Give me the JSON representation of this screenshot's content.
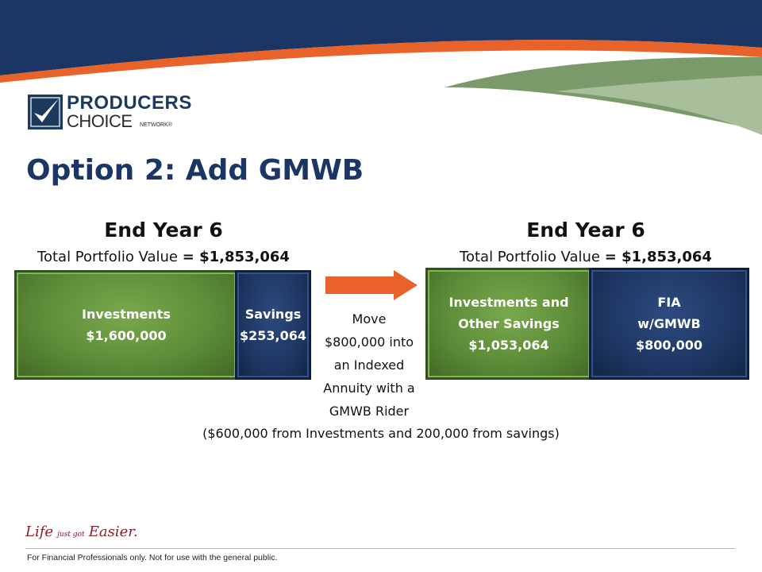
{
  "brand": {
    "name_line1": "PRODUCERS",
    "name_line2": "CHOICE",
    "name_line3": "NETWORK®",
    "logo_icon": "checkmark-icon",
    "colors": {
      "navy": "#1b3664",
      "green": "#5d8d39",
      "orange": "#e8622a",
      "tagline_red": "#8b1f2a"
    }
  },
  "slide": {
    "title": "Option 2: Add GMWB"
  },
  "left_group": {
    "heading": "End Year 6",
    "total_label": "Total Portfolio Value",
    "total_value": "= $1,853,064",
    "bars": [
      {
        "line1": "Investments",
        "line2": "$1,600,000"
      },
      {
        "line1": "Savings",
        "line2": "$253,064"
      }
    ]
  },
  "transfer": {
    "arrow_icon": "right-arrow-icon",
    "lines": [
      "Move",
      "$800,000 into",
      "an Indexed",
      "Annuity with a",
      "GMWB Rider"
    ]
  },
  "right_group": {
    "heading": "End Year 6",
    "total_label": "Total Portfolio Value",
    "total_value": "= $1,853,064",
    "bars": [
      {
        "line1": "Investments and",
        "line2": "Other Savings",
        "line3": "$1,053,064"
      },
      {
        "line1": "FIA",
        "line2": "w/GMWB",
        "line3": "$800,000"
      }
    ]
  },
  "footnote": "($600,000 from Investments and 200,000 from savings)",
  "footer": {
    "tagline_life": "Life",
    "tagline_just_got": "just got",
    "tagline_easier": "Easier.",
    "disclaimer": "For Financial Professionals only. Not for use with the general public."
  }
}
